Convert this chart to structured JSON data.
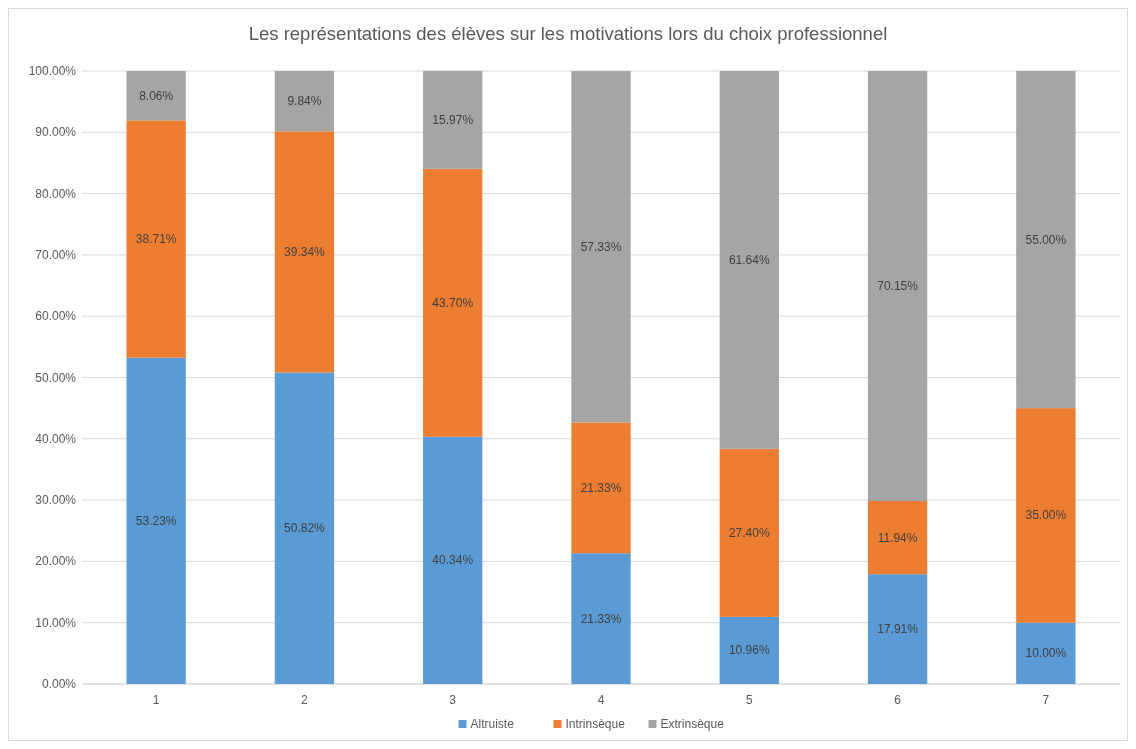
{
  "chart_data": {
    "type": "bar",
    "title": "Les représentations des élèves sur les motivations lors du choix professionnel",
    "categories": [
      "1",
      "2",
      "3",
      "4",
      "5",
      "6",
      "7"
    ],
    "stacked": true,
    "ylim": [
      0,
      100
    ],
    "yticks": [
      {
        "value": 0,
        "label": "0.00%"
      },
      {
        "value": 10,
        "label": "10.00%"
      },
      {
        "value": 20,
        "label": "20.00%"
      },
      {
        "value": 30,
        "label": "30.00%"
      },
      {
        "value": 40,
        "label": "40.00%"
      },
      {
        "value": 50,
        "label": "50.00%"
      },
      {
        "value": 60,
        "label": "60.00%"
      },
      {
        "value": 70,
        "label": "70.00%"
      },
      {
        "value": 80,
        "label": "80.00%"
      },
      {
        "value": 90,
        "label": "90.00%"
      },
      {
        "value": 100,
        "label": "100.00%"
      }
    ],
    "grid": "y",
    "legend": "bottom",
    "series": [
      {
        "name": "Altruiste",
        "color": "#5b9bd5",
        "values": [
          53.23,
          50.82,
          40.34,
          21.33,
          10.96,
          17.91,
          10.0
        ],
        "value_labels": [
          "53.23%",
          "50.82%",
          "40.34%",
          "21.33%",
          "10.96%",
          "17.91%",
          "10.00%"
        ]
      },
      {
        "name": "Intrinsèque",
        "color": "#ed7d31",
        "values": [
          38.71,
          39.34,
          43.7,
          21.33,
          27.4,
          11.94,
          35.0
        ],
        "value_labels": [
          "38.71%",
          "39.34%",
          "43.70%",
          "21.33%",
          "27.40%",
          "11.94%",
          "35.00%"
        ]
      },
      {
        "name": "Extrinsèque",
        "color": "#a5a5a5",
        "values": [
          8.06,
          9.84,
          15.97,
          57.33,
          61.64,
          70.15,
          55.0
        ],
        "value_labels": [
          "8.06%",
          "9.84%",
          "15.97%",
          "57.33%",
          "61.64%",
          "70.15%",
          "55.00%"
        ]
      }
    ]
  }
}
